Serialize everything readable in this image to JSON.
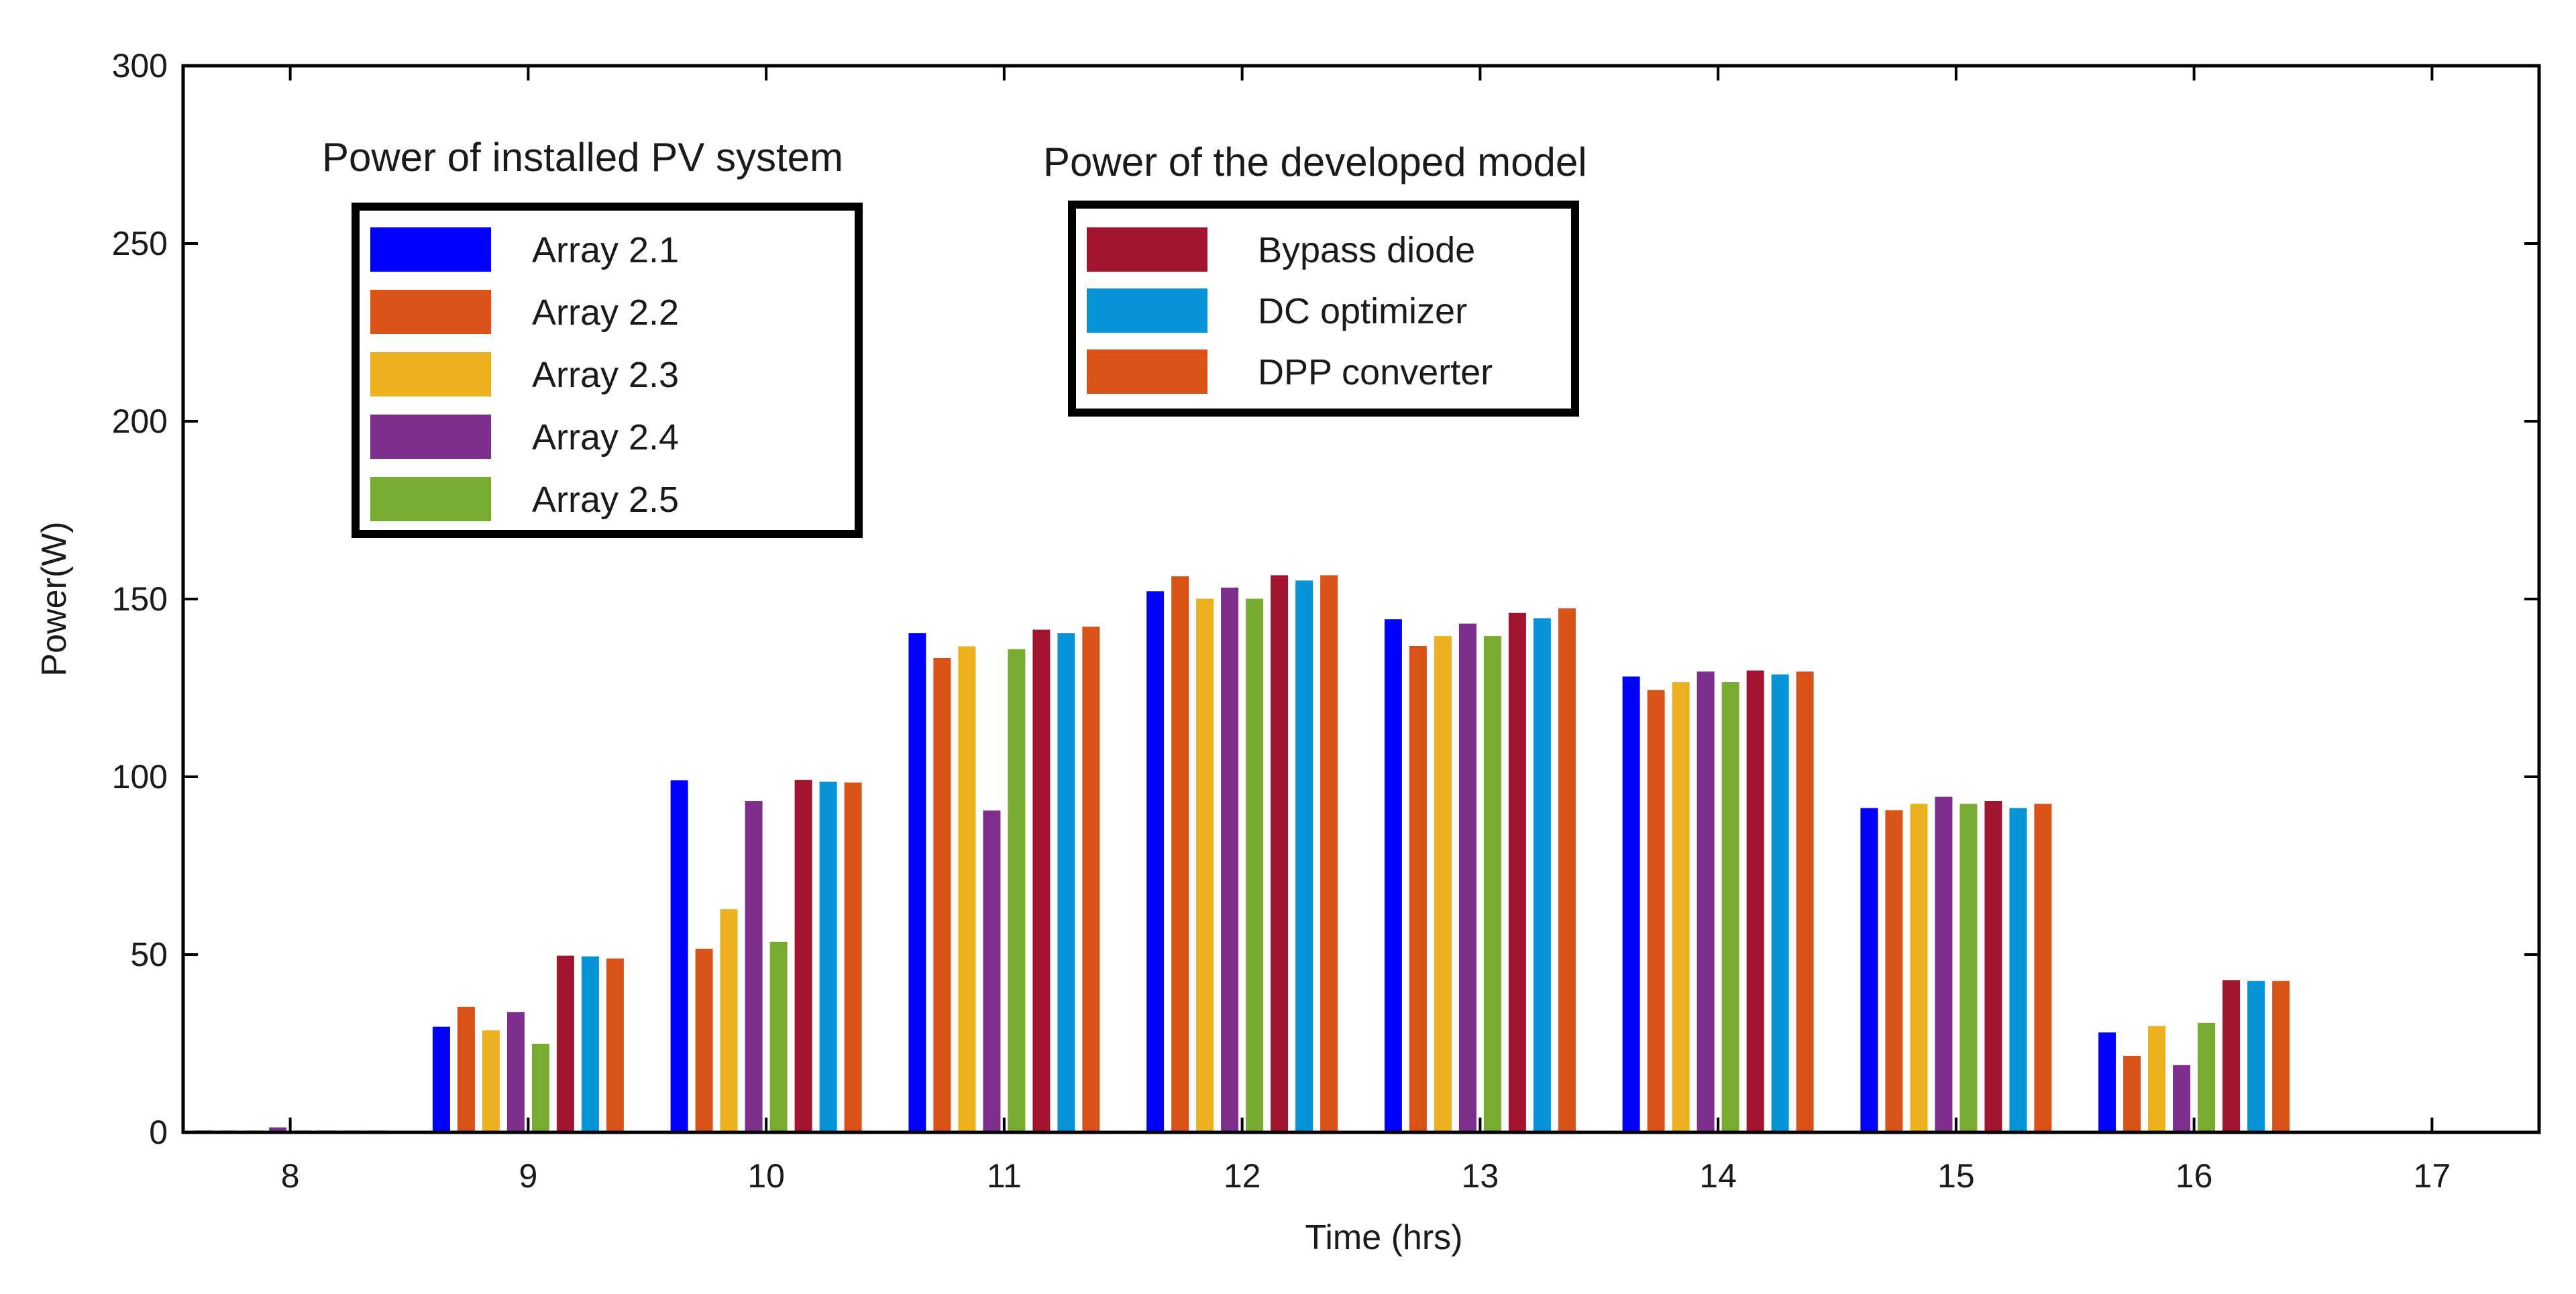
{
  "chart_data": {
    "type": "bar",
    "title": "",
    "xlabel": "Time (hrs)",
    "ylabel": "Power(W)",
    "x_ticks": [
      "8",
      "9",
      "10",
      "11",
      "12",
      "13",
      "14",
      "15",
      "16",
      "17"
    ],
    "y_ticks": [
      "0",
      "50",
      "100",
      "150",
      "200",
      "250",
      "300"
    ],
    "ylim": [
      0,
      300
    ],
    "xlim": [
      7.55,
      17.45
    ],
    "grid": false,
    "series": [
      {
        "name": "Array 2.1",
        "color": "#0000FF",
        "values": [
          0.5,
          29.7,
          99.0,
          140.4,
          152.2,
          144.3,
          128.2,
          91.2,
          28.1,
          0
        ]
      },
      {
        "name": "Array 2.2",
        "color": "#D95319",
        "values": [
          0.5,
          35.3,
          51.6,
          133.4,
          156.4,
          136.8,
          124.4,
          90.6,
          21.5,
          0
        ]
      },
      {
        "name": "Array 2.3",
        "color": "#EDB120",
        "values": [
          0.5,
          28.7,
          62.8,
          136.7,
          150.1,
          139.6,
          126.6,
          92.4,
          29.9,
          0
        ]
      },
      {
        "name": "Array 2.4",
        "color": "#7E2F8E",
        "values": [
          1.4,
          33.8,
          93.2,
          90.5,
          153.2,
          143.1,
          129.6,
          94.4,
          18.9,
          0
        ]
      },
      {
        "name": "Array 2.5",
        "color": "#77AC30",
        "values": [
          0.5,
          24.9,
          53.6,
          135.9,
          150.1,
          139.6,
          126.6,
          92.4,
          30.8,
          0
        ]
      },
      {
        "name": "Bypass diode",
        "color": "#A2142F",
        "values": [
          0.5,
          49.7,
          99.1,
          141.4,
          156.7,
          146.1,
          129.9,
          93.2,
          42.8,
          0
        ]
      },
      {
        "name": "DC optimizer",
        "color": "#0694D6",
        "values": [
          0.5,
          49.5,
          98.6,
          140.4,
          155.2,
          144.6,
          128.8,
          91.2,
          42.6,
          0
        ]
      },
      {
        "name": "DPP converter",
        "color": "#D95319",
        "values": [
          0.5,
          48.9,
          98.4,
          142.2,
          156.7,
          147.4,
          129.6,
          92.4,
          42.6,
          0
        ]
      }
    ],
    "legends": [
      {
        "title": "Power of installed PV system",
        "entries": [
          "Array 2.1",
          "Array 2.2",
          "Array 2.3",
          "Array 2.4",
          "Array 2.5"
        ]
      },
      {
        "title": "Power of the developed model",
        "entries": [
          "Bypass diode",
          "DC optimizer",
          "DPP converter"
        ]
      }
    ]
  }
}
